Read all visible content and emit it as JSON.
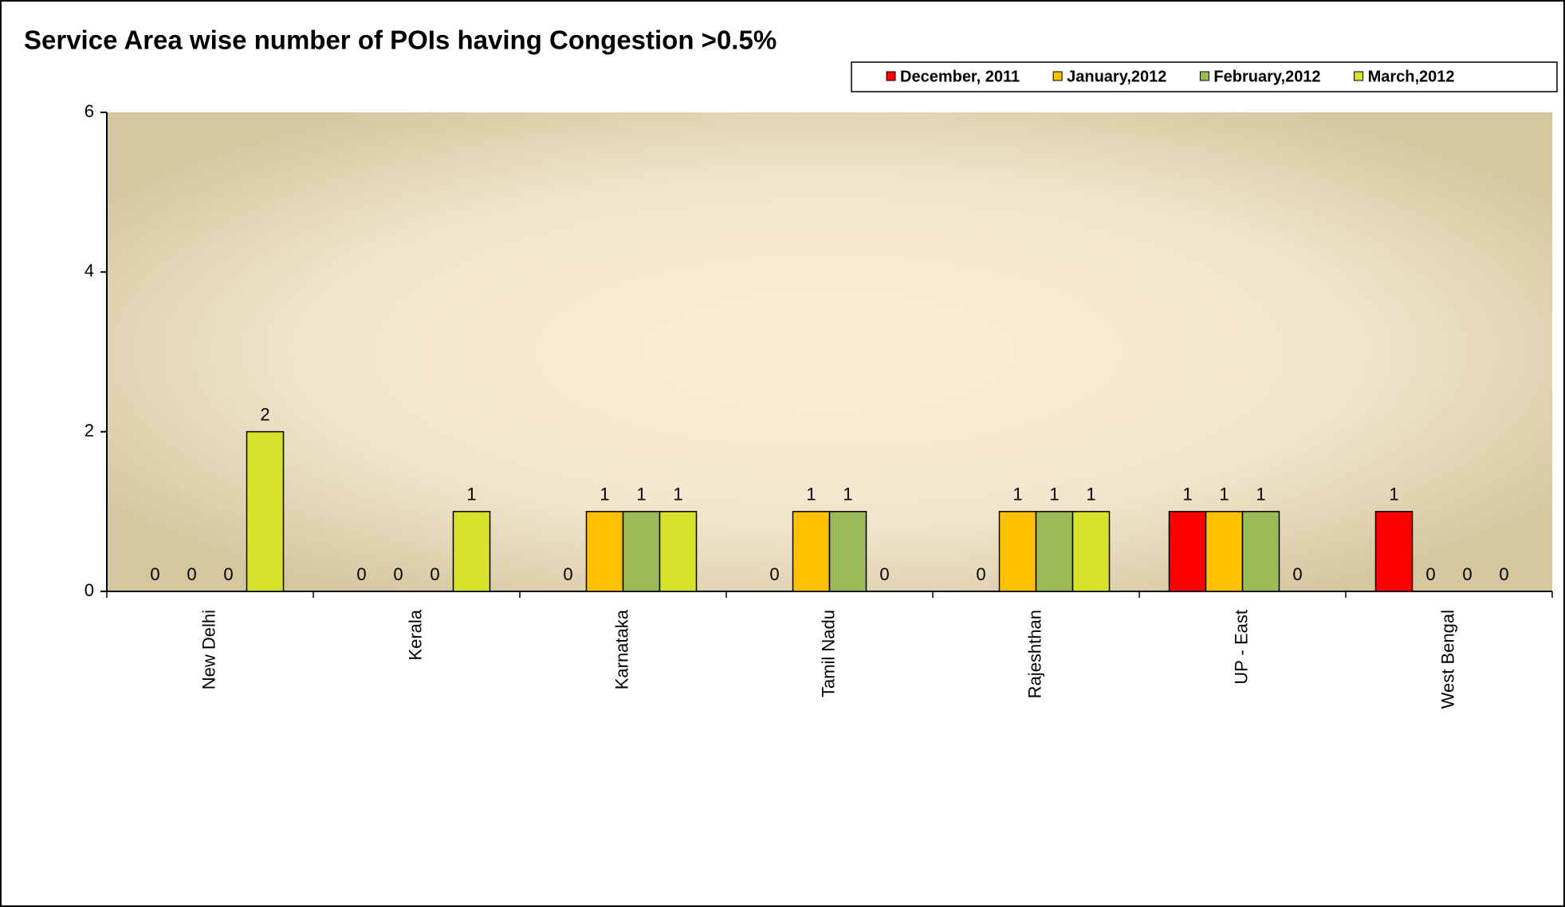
{
  "chart_data": {
    "type": "bar",
    "title": "Service Area wise  number of POIs having Congestion >0.5%",
    "categories": [
      "New Delhi",
      "Kerala",
      "Karnataka",
      "Tamil Nadu",
      "Rajeshthan",
      "UP - East",
      "West Bengal"
    ],
    "series": [
      {
        "name": "December, 2011",
        "color": "#ff0000",
        "values": [
          0,
          0,
          0,
          0,
          0,
          1,
          1
        ]
      },
      {
        "name": "January,2012",
        "color": "#ffc000",
        "values": [
          0,
          0,
          1,
          1,
          1,
          1,
          0
        ]
      },
      {
        "name": "February,2012",
        "color": "#9bbb59",
        "values": [
          0,
          0,
          1,
          1,
          1,
          1,
          0
        ]
      },
      {
        "name": "March,2012",
        "color": "#d7e32a",
        "values": [
          2,
          1,
          1,
          0,
          1,
          0,
          0
        ]
      }
    ],
    "ylim": [
      0,
      6
    ],
    "yticks": [
      0,
      2,
      4,
      6
    ],
    "legend": "top-right"
  }
}
